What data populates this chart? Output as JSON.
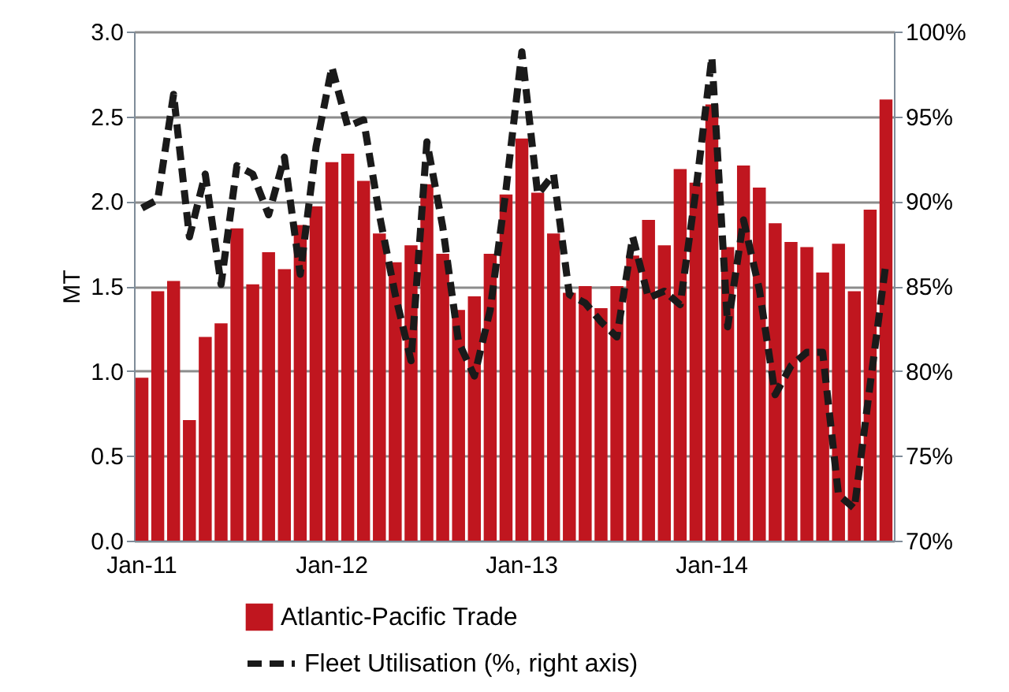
{
  "chart_data": {
    "type": "bar",
    "ylabel": "MT",
    "categories": [
      "Jan-11",
      null,
      null,
      null,
      null,
      null,
      null,
      null,
      null,
      null,
      null,
      null,
      "Jan-12",
      null,
      null,
      null,
      null,
      null,
      null,
      null,
      null,
      null,
      null,
      null,
      "Jan-13",
      null,
      null,
      null,
      null,
      null,
      null,
      null,
      null,
      null,
      null,
      null,
      "Jan-14",
      null,
      null,
      null,
      null,
      null,
      null,
      null,
      null,
      null,
      null,
      null
    ],
    "series": [
      {
        "name": "Atlantic-Pacific Trade",
        "color": "#c0161f",
        "values": [
          0.96,
          1.47,
          1.53,
          0.71,
          1.2,
          1.28,
          1.84,
          1.51,
          1.7,
          1.6,
          1.86,
          1.97,
          2.23,
          2.28,
          2.12,
          1.81,
          1.64,
          1.74,
          2.1,
          1.69,
          1.36,
          1.44,
          1.69,
          2.04,
          2.37,
          2.05,
          1.81,
          1.46,
          1.5,
          1.37,
          1.5,
          1.68,
          1.89,
          1.74,
          2.19,
          2.11,
          2.57,
          1.73,
          2.21,
          2.08,
          1.87,
          1.76,
          1.73,
          1.58,
          1.75,
          1.47,
          1.95,
          2.6
        ]
      },
      {
        "name": "Fleet Utilisation (%, right axis)",
        "type": "line",
        "axis": "y2",
        "color": "#1a1a1a",
        "line_style": "dashed",
        "values": [
          89.6,
          90.1,
          96.3,
          87.9,
          91.6,
          85.1,
          92.1,
          91.6,
          89.2,
          92.6,
          85.7,
          93.2,
          97.9,
          94.4,
          94.8,
          89.2,
          84.5,
          80.6,
          93.5,
          88.5,
          81.7,
          79.7,
          83.6,
          90.7,
          98.8,
          90.4,
          91.6,
          84.5,
          84.0,
          82.9,
          82.0,
          87.9,
          84.3,
          84.7,
          83.9,
          90.7,
          98.5,
          82.6,
          88.9,
          84.8,
          78.6,
          80.3,
          81.1,
          81.1,
          72.7,
          71.9,
          79.2,
          86.4
        ]
      }
    ],
    "ylim": [
      0,
      3
    ],
    "yticks": [
      {
        "value": 0,
        "label": "0.0"
      },
      {
        "value": 0.5,
        "label": "0.5"
      },
      {
        "value": 1,
        "label": "1.0"
      },
      {
        "value": 1.5,
        "label": "1.5"
      },
      {
        "value": 2,
        "label": "2.0"
      },
      {
        "value": 2.5,
        "label": "2.5"
      },
      {
        "value": 3,
        "label": "3.0"
      }
    ],
    "y2lim": [
      70,
      100
    ],
    "y2ticks": [
      {
        "value": 70,
        "label": "70%"
      },
      {
        "value": 75,
        "label": "75%"
      },
      {
        "value": 80,
        "label": "80%"
      },
      {
        "value": 85,
        "label": "85%"
      },
      {
        "value": 90,
        "label": "90%"
      },
      {
        "value": 95,
        "label": "95%"
      },
      {
        "value": 100,
        "label": "100%"
      }
    ],
    "grid": "y",
    "legend": "bottom",
    "marker": "none"
  }
}
